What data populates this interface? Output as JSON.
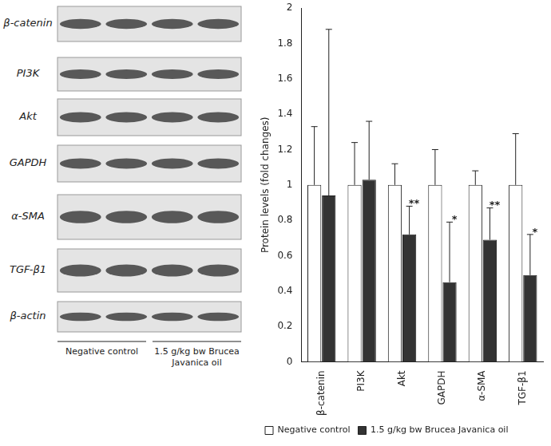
{
  "chart_data": {
    "type": "bar",
    "y_label": "Protein levels (fold changes)",
    "categories": [
      "β-catenin",
      "PI3K",
      "Akt",
      "GAPDH",
      "α-SMA",
      "TGF-β1"
    ],
    "series": [
      {
        "name": "Negative control",
        "color": "#ffffff",
        "values": [
          1,
          1,
          1,
          1,
          1,
          1
        ],
        "errors": [
          0.33,
          0.24,
          0.12,
          0.2,
          0.08,
          0.29
        ]
      },
      {
        "name": "1.5 g/kg bw Brucea Javanica oil",
        "color": "#333333",
        "values": [
          0.94,
          1.03,
          0.72,
          0.45,
          0.69,
          0.49
        ],
        "errors": [
          0.94,
          0.33,
          0.16,
          0.34,
          0.18,
          0.23
        ],
        "significance": [
          null,
          null,
          "**",
          "*",
          "**",
          "*"
        ]
      }
    ],
    "ylim": [
      0,
      2
    ],
    "yticks": [
      0,
      0.2,
      0.4,
      0.6,
      0.8,
      1,
      1.2,
      1.4,
      1.6,
      1.8,
      2
    ],
    "grid": false,
    "legend": "bottom"
  },
  "blot": {
    "rows": [
      "β-catenin",
      "PI3K",
      "Akt",
      "GAPDH",
      "α-SMA",
      "TGF-β1",
      "β-actin"
    ],
    "groups": [
      "Negative control",
      "1.5 g/kg bw Brucea Javanica oil"
    ]
  }
}
